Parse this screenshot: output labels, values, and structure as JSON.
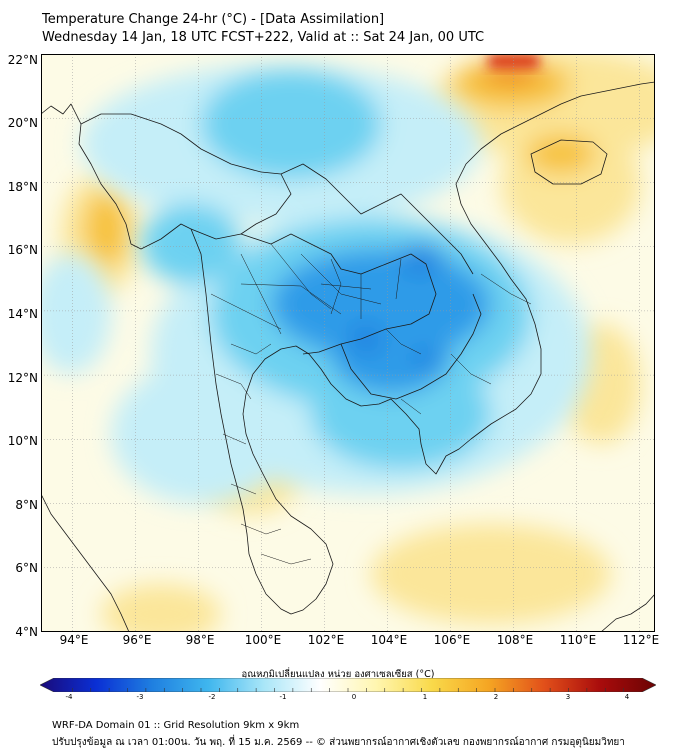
{
  "header": {
    "title": "Temperature Change 24-hr (°C) - [Data Assimilation]",
    "subtitle": "Wednesday 14 Jan, 18 UTC FCST+222, Valid at :: Sat 24 Jan, 00 UTC"
  },
  "map": {
    "lat_labels": [
      "22°N",
      "20°N",
      "18°N",
      "16°N",
      "14°N",
      "12°N",
      "10°N",
      "8°N",
      "6°N",
      "4°N"
    ],
    "lon_labels": [
      "94°E",
      "96°E",
      "98°E",
      "100°E",
      "102°E",
      "104°E",
      "106°E",
      "108°E",
      "110°E",
      "112°E"
    ],
    "lat_range": [
      4,
      22
    ],
    "lon_range": [
      93,
      112.5
    ],
    "colors": {
      "ocean_base": "#fdfbe6",
      "cool_light": "#c5eef8",
      "cool_mid": "#6dd1f1",
      "cool_strong": "#2f9be8",
      "cool_core": "#1f7fe0",
      "warm_light": "#fbe69a",
      "warm_mid": "#f7c23c",
      "warm_strong": "#ef8a1a",
      "hot_core": "#d9300f"
    }
  },
  "colorbar": {
    "label": "อุณหภูมิเปลี่ยนแปลง หน่วย องศาเซลเซียส (°C)",
    "ticks": [
      "-4",
      "-3",
      "-2",
      "-1",
      "0",
      "1",
      "2",
      "3",
      "4"
    ],
    "range": [
      -4,
      4
    ],
    "colors": [
      "#1a0a7a",
      "#0a2fd4",
      "#1f7fe0",
      "#3fb6ee",
      "#a9e6f8",
      "#ffffff",
      "#fff6b0",
      "#f9d94a",
      "#f5a623",
      "#e2501a",
      "#a90c0c",
      "#6b0303"
    ]
  },
  "footer": {
    "line1": "WRF-DA Domain 01 :: Grid Resolution 9km x 9km",
    "line2": "ปรับปรุงข้อมูล ณ เวลา 01:00น. วัน พฤ. ที่ 15 ม.ค. 2569 -- © ส่วนพยากรณ์อากาศเชิงตัวเลข กองพยากรณ์อากาศ กรมอุตุนิยมวิทยา"
  }
}
